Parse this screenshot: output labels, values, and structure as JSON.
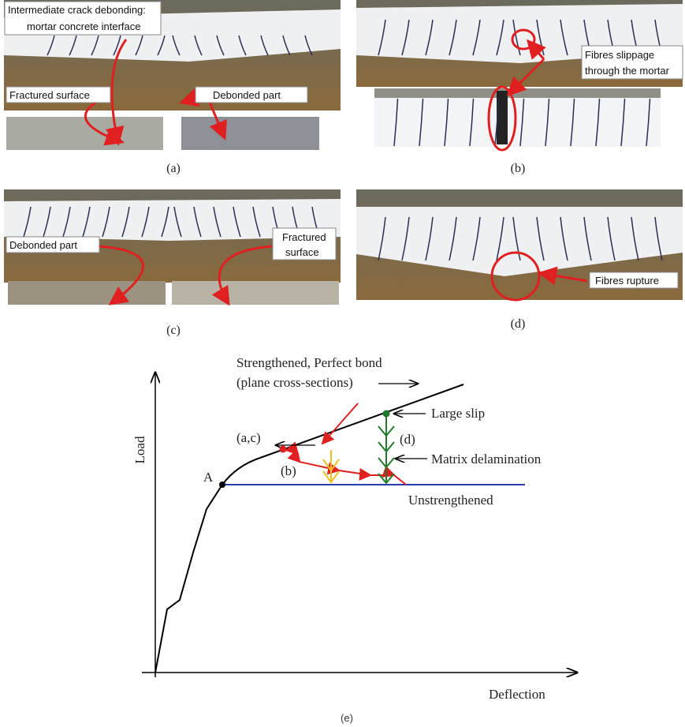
{
  "panel_a": {
    "caption": "(a)",
    "callouts": [
      "Intermediate crack debonding:",
      "mortar concrete interface",
      "Fractured surface",
      "Debonded part"
    ]
  },
  "panel_b": {
    "caption": "(b)",
    "callouts": [
      "Fibres slippage",
      "through the mortar"
    ]
  },
  "panel_c": {
    "caption": "(c)",
    "callouts": [
      "Debonded part",
      "Fractured",
      "surface"
    ]
  },
  "panel_d": {
    "caption": "(d)",
    "callouts": [
      "Fibres rupture"
    ]
  },
  "panel_e": {
    "caption": "(e)",
    "y_axis": "Load",
    "x_axis": "Deflection",
    "labels": [
      "Strengthened, Perfect bond",
      "(plane cross-sections)",
      "Large slip",
      "(a,c)",
      "(d)",
      "Matrix delamination",
      "A",
      "(b)",
      "Unstrengthened"
    ]
  }
}
